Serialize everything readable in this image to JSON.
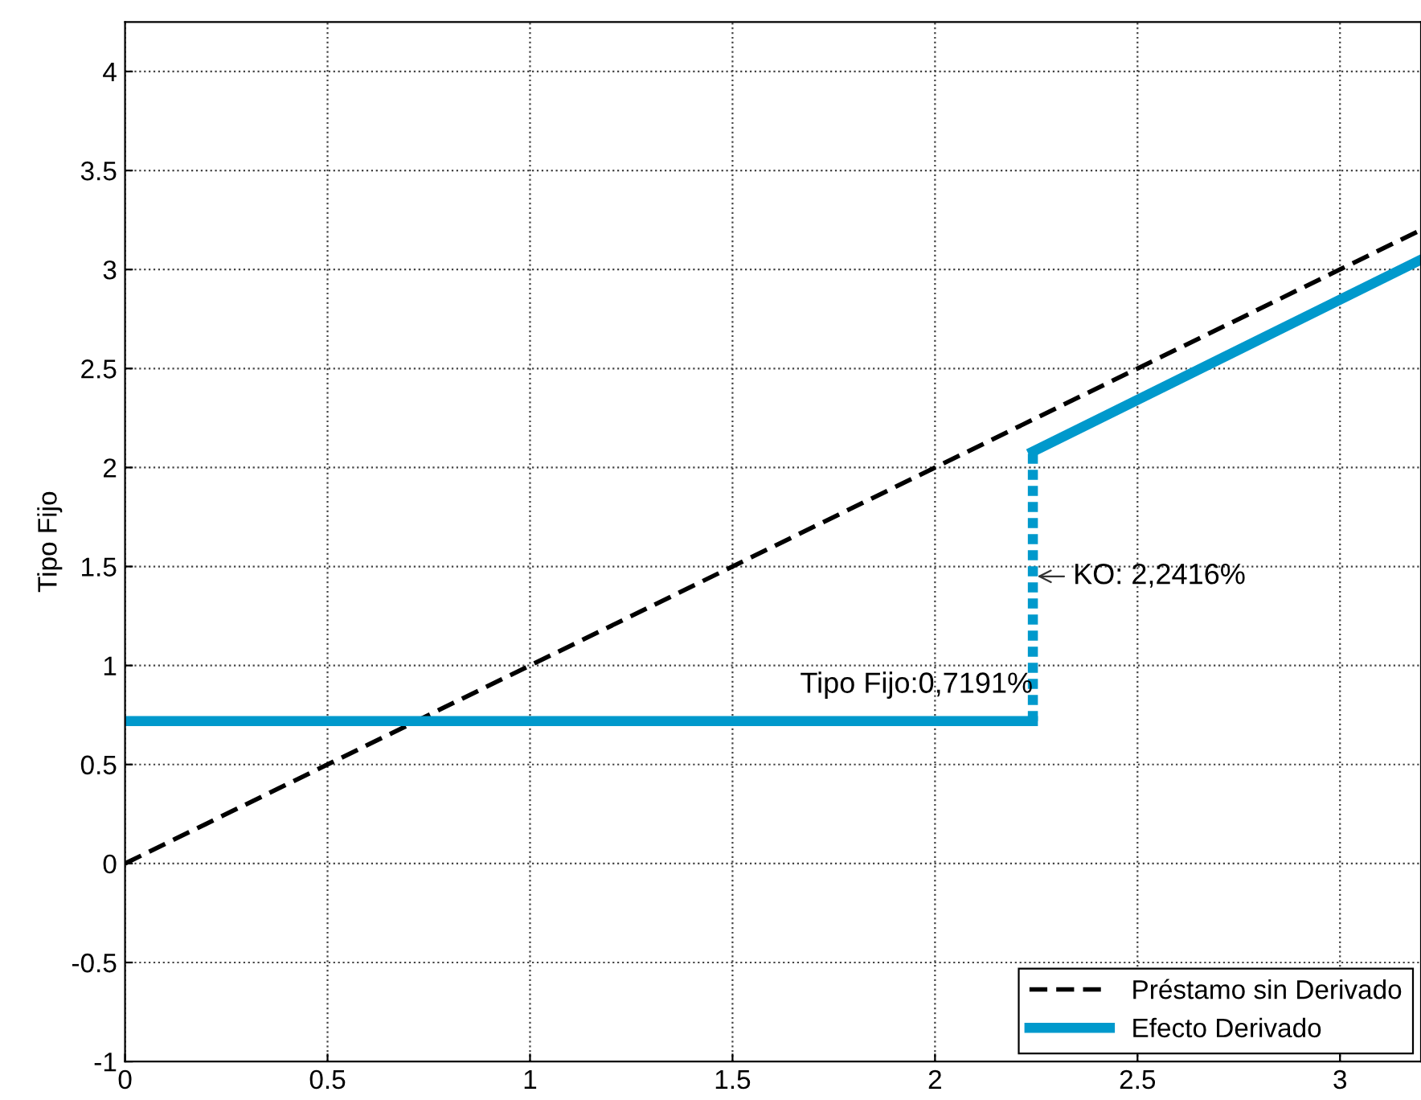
{
  "chart_data": {
    "type": "line",
    "ylabel": "Tipo Fijo",
    "xlim": [
      0,
      3.2
    ],
    "ylim": [
      -1,
      4.25
    ],
    "xticks": [
      0,
      0.5,
      1,
      1.5,
      2,
      2.5,
      3
    ],
    "yticks": [
      -1,
      -0.5,
      0,
      0.5,
      1,
      1.5,
      2,
      2.5,
      3,
      3.5,
      4
    ],
    "grid": true,
    "legend": "bottom right",
    "series": [
      {
        "name": "Préstamo sin Derivado",
        "color": "#000000",
        "line_style": "dashed",
        "x": [
          0,
          3.2
        ],
        "values": [
          0,
          3.2
        ]
      },
      {
        "name": "Efecto Derivado",
        "color": "#0099cc",
        "line_style": "solid",
        "x": [
          0,
          2.2416
        ],
        "values": [
          0.7191,
          0.7191
        ]
      },
      {
        "color": "#0099cc",
        "line_style": "dotted",
        "x": [
          2.2416,
          2.2416
        ],
        "values": [
          0.7191,
          2.08
        ]
      },
      {
        "color": "#0099cc",
        "line_style": "solid",
        "x": [
          2.2416,
          3.2
        ],
        "values": [
          2.08,
          3.05
        ]
      }
    ],
    "annotations": [
      {
        "text": "Tipo Fijo:0,7191%",
        "x": 2.2416,
        "y": 0.7191
      },
      {
        "text": "KO: 2,2416%",
        "x": 2.2416,
        "y": 1.45
      }
    ]
  }
}
